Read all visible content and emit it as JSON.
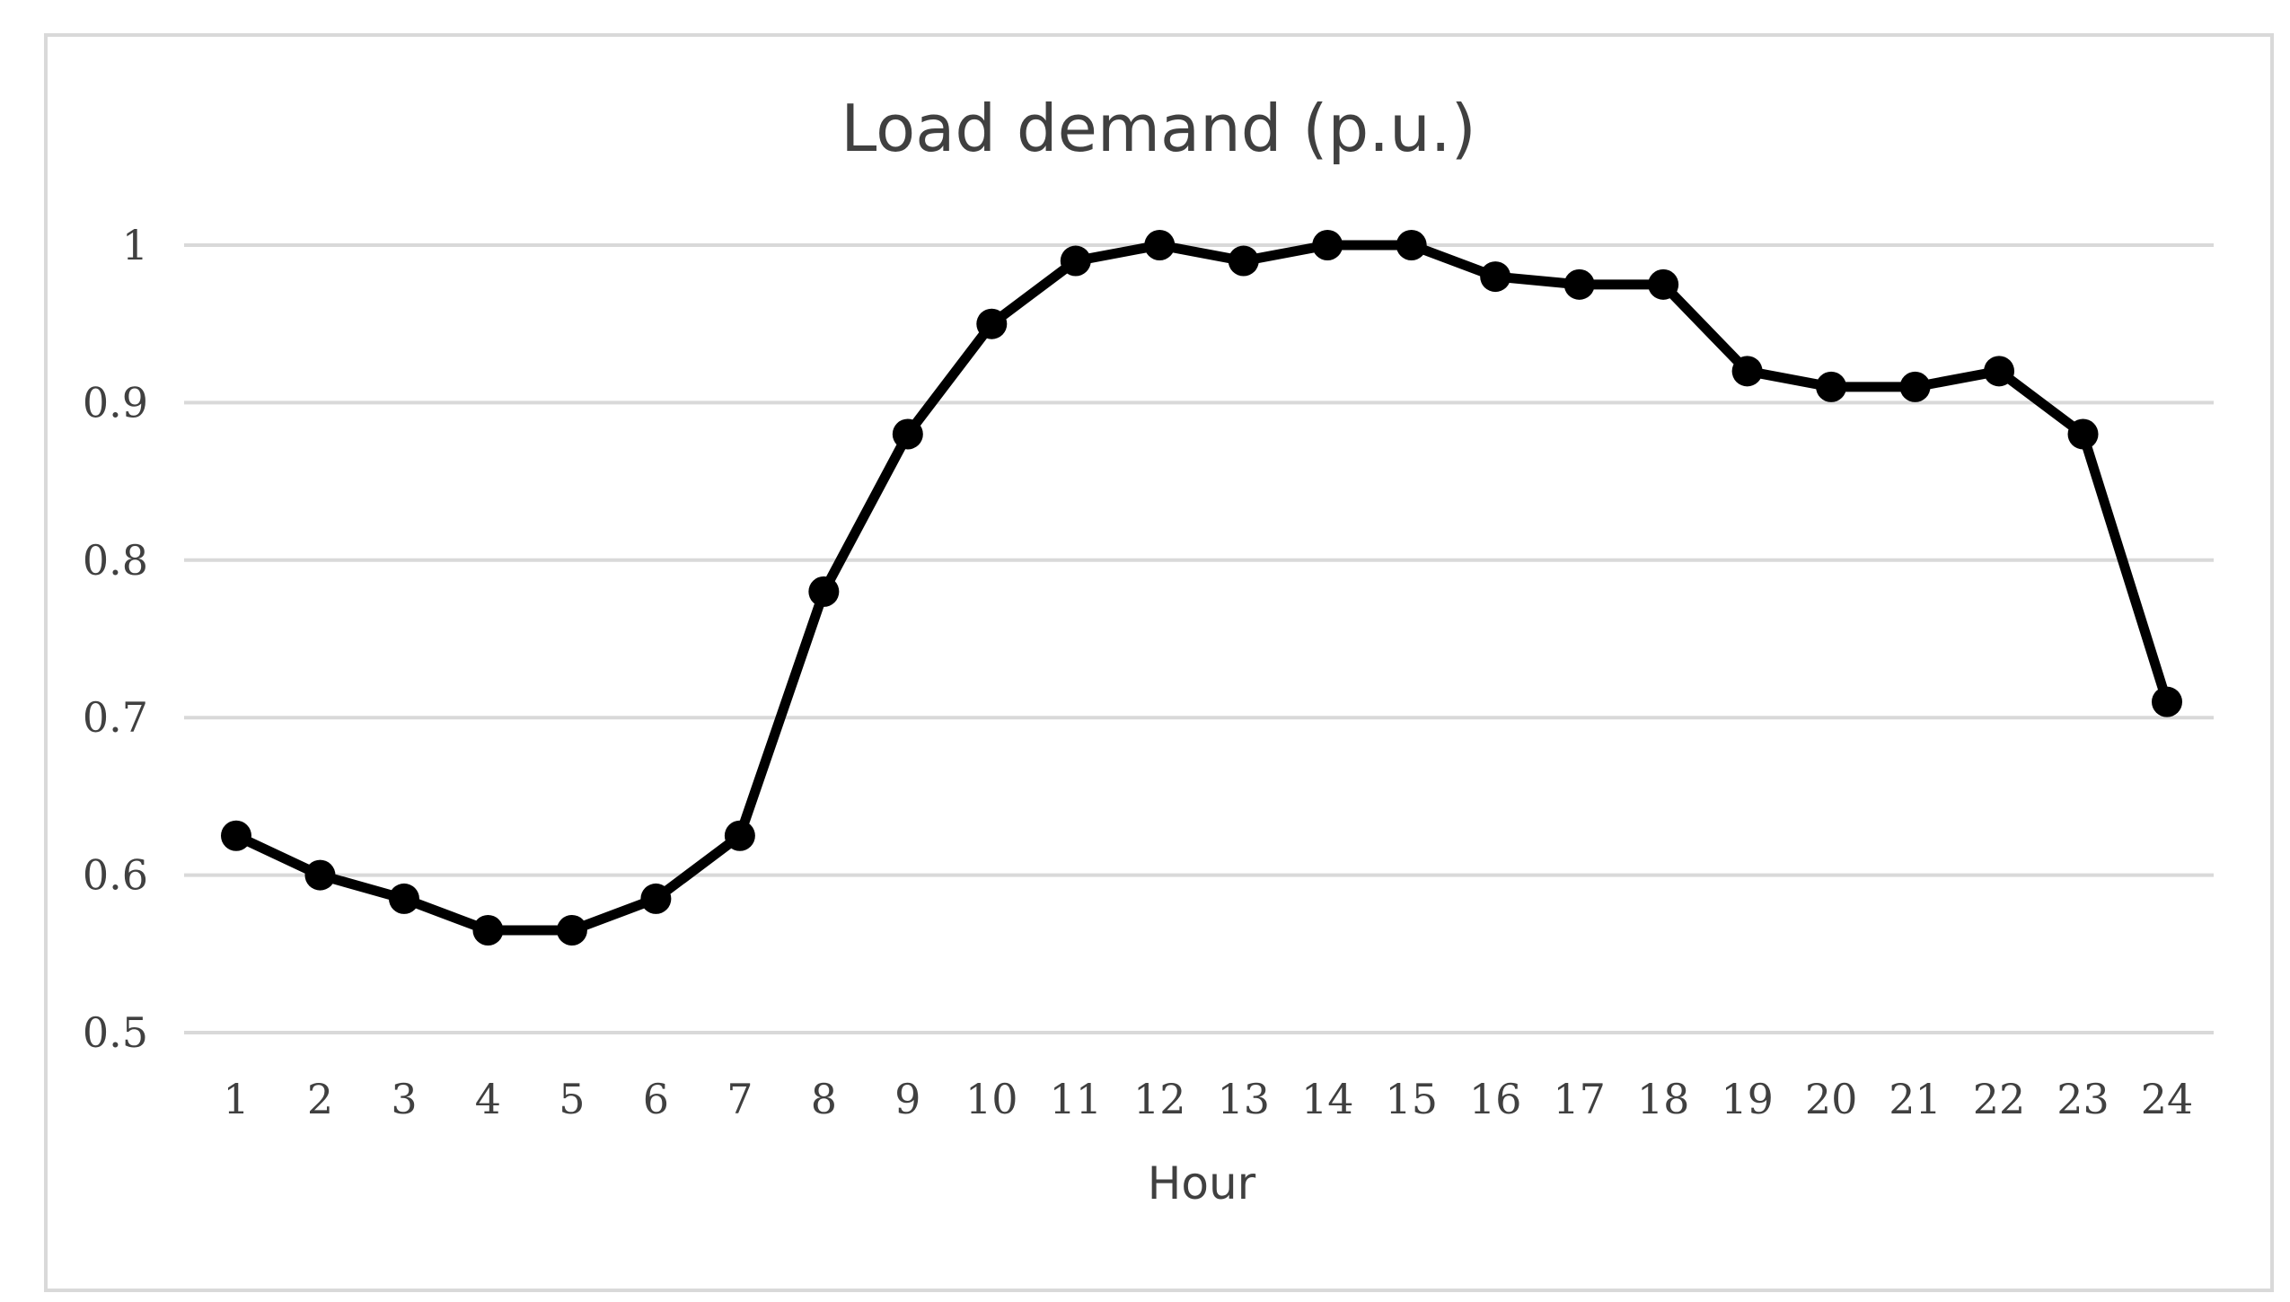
{
  "chart_data": {
    "type": "line",
    "title": "Load demand (p.u.)",
    "xlabel": "Hour",
    "ylabel": "",
    "x": [
      "1",
      "2",
      "3",
      "4",
      "5",
      "6",
      "7",
      "8",
      "9",
      "10",
      "11",
      "12",
      "13",
      "14",
      "15",
      "16",
      "17",
      "18",
      "19",
      "20",
      "21",
      "22",
      "23",
      "24"
    ],
    "series": [
      {
        "values": [
          0.625,
          0.6,
          0.585,
          0.565,
          0.565,
          0.585,
          0.625,
          0.78,
          0.88,
          0.95,
          0.99,
          1.0,
          0.99,
          1.0,
          1.0,
          0.98,
          0.975,
          0.975,
          0.92,
          0.91,
          0.91,
          0.92,
          0.88,
          0.71
        ],
        "color": "#000000"
      }
    ],
    "ylim": [
      0.5,
      1.0
    ],
    "yticks": [
      "0.5",
      "0.6",
      "0.7",
      "0.8",
      "0.9",
      "1"
    ],
    "grid": true,
    "legend": "none"
  }
}
